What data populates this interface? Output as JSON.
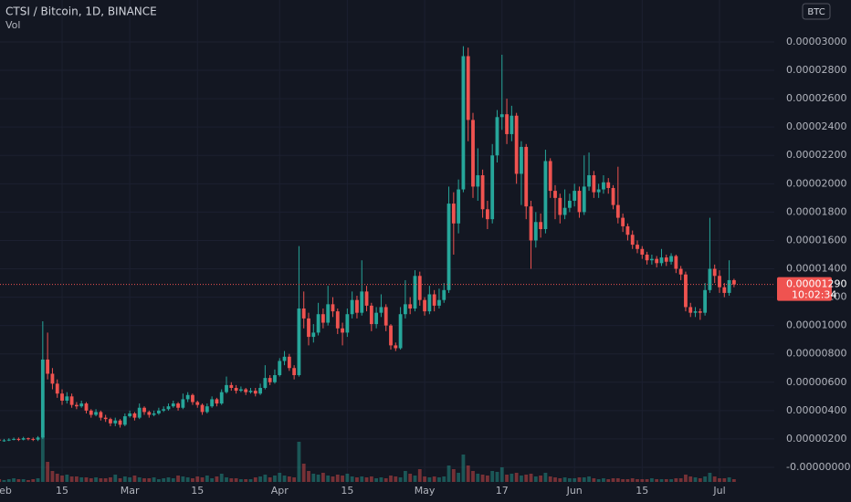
{
  "chart_data": {
    "type": "candlestick",
    "title": "CTSI / Bitcoin, 1D, BINANCE",
    "volume_title": "Vol",
    "currency_button": "BTC",
    "last_price": {
      "value": 1.29e-05,
      "label": "0.00001290"
    },
    "countdown": "10:02:34",
    "up_color": "#26a69a",
    "down_color": "#ef5350",
    "grid": true,
    "ylim": [
      -1.16e-06,
      3.296e-05
    ],
    "yticks": [
      {
        "value": 0,
        "label": "-0.00000000"
      },
      {
        "value": 2e-06,
        "label": "0.00000200"
      },
      {
        "value": 4e-06,
        "label": "0.00000400"
      },
      {
        "value": 6e-06,
        "label": "0.00000600"
      },
      {
        "value": 8e-06,
        "label": "0.00000800"
      },
      {
        "value": 1e-05,
        "label": "0.00001000"
      },
      {
        "value": 1.2e-05,
        "label": "0.00001200"
      },
      {
        "value": 1.4e-05,
        "label": "0.00001400"
      },
      {
        "value": 1.6e-05,
        "label": "0.00001600"
      },
      {
        "value": 1.8e-05,
        "label": "0.00001800"
      },
      {
        "value": 2e-05,
        "label": "0.00002000"
      },
      {
        "value": 2.2e-05,
        "label": "0.00002200"
      },
      {
        "value": 2.4e-05,
        "label": "0.00002400"
      },
      {
        "value": 2.6e-05,
        "label": "0.00002600"
      },
      {
        "value": 2.8e-05,
        "label": "0.00002800"
      },
      {
        "value": 3e-05,
        "label": "0.00003000"
      }
    ],
    "xticks": [
      {
        "value": "Feb 1",
        "label": "eb"
      },
      {
        "value": "Feb 15",
        "label": "15"
      },
      {
        "value": "Mar 1",
        "label": "Mar"
      },
      {
        "value": "Mar 15",
        "label": "15"
      },
      {
        "value": "Apr 1",
        "label": "Apr"
      },
      {
        "value": "Apr 15",
        "label": "15"
      },
      {
        "value": "May 1",
        "label": "May"
      },
      {
        "value": "May 17",
        "label": "17"
      },
      {
        "value": "Jun 1",
        "label": "Jun"
      },
      {
        "value": "Jun 15",
        "label": "15"
      },
      {
        "value": "Jul 1",
        "label": "Jul"
      }
    ],
    "x": [
      "Feb 1",
      "Feb 2",
      "Feb 3",
      "Feb 4",
      "Feb 5",
      "Feb 6",
      "Feb 7",
      "Feb 8",
      "Feb 9",
      "Feb 10",
      "Feb 11",
      "Feb 12",
      "Feb 13",
      "Feb 14",
      "Feb 15",
      "Feb 16",
      "Feb 17",
      "Feb 18",
      "Feb 19",
      "Feb 20",
      "Feb 21",
      "Feb 22",
      "Feb 23",
      "Feb 24",
      "Feb 25",
      "Feb 26",
      "Feb 27",
      "Feb 28",
      "Mar 1",
      "Mar 2",
      "Mar 3",
      "Mar 4",
      "Mar 5",
      "Mar 6",
      "Mar 7",
      "Mar 8",
      "Mar 9",
      "Mar 10",
      "Mar 11",
      "Mar 12",
      "Mar 13",
      "Mar 14",
      "Mar 15",
      "Mar 16",
      "Mar 17",
      "Mar 18",
      "Mar 19",
      "Mar 20",
      "Mar 21",
      "Mar 22",
      "Mar 23",
      "Mar 24",
      "Mar 25",
      "Mar 26",
      "Mar 27",
      "Mar 28",
      "Mar 29",
      "Mar 30",
      "Mar 31",
      "Apr 1",
      "Apr 2",
      "Apr 3",
      "Apr 4",
      "Apr 5",
      "Apr 6",
      "Apr 7",
      "Apr 8",
      "Apr 9",
      "Apr 10",
      "Apr 11",
      "Apr 12",
      "Apr 13",
      "Apr 14",
      "Apr 15",
      "Apr 16",
      "Apr 17",
      "Apr 18",
      "Apr 19",
      "Apr 20",
      "Apr 21",
      "Apr 22",
      "Apr 23",
      "Apr 24",
      "Apr 25",
      "Apr 26",
      "Apr 27",
      "Apr 28",
      "Apr 29",
      "Apr 30",
      "May 1",
      "May 2",
      "May 3",
      "May 4",
      "May 5",
      "May 6",
      "May 7",
      "May 8",
      "May 9",
      "May 10",
      "May 11",
      "May 12",
      "May 13",
      "May 14",
      "May 15",
      "May 16",
      "May 17",
      "May 18",
      "May 19",
      "May 20",
      "May 21",
      "May 22",
      "May 23",
      "May 24",
      "May 25",
      "May 26",
      "May 27",
      "May 28",
      "May 29",
      "May 30",
      "May 31",
      "Jun 1",
      "Jun 2",
      "Jun 3",
      "Jun 4",
      "Jun 5",
      "Jun 6",
      "Jun 7",
      "Jun 8",
      "Jun 9",
      "Jun 10",
      "Jun 11",
      "Jun 12",
      "Jun 13",
      "Jun 14",
      "Jun 15",
      "Jun 16",
      "Jun 17",
      "Jun 18",
      "Jun 19",
      "Jun 20",
      "Jun 21",
      "Jun 22",
      "Jun 23",
      "Jun 24",
      "Jun 25",
      "Jun 26",
      "Jun 27",
      "Jun 28",
      "Jun 29",
      "Jun 30",
      "Jul 1",
      "Jul 2",
      "Jul 3",
      "Jul 4"
    ],
    "ohlc": [
      [
        1.9e-06,
        2e-06,
        1.85e-06,
        1.95e-06
      ],
      [
        1.95e-06,
        2.05e-06,
        1.85e-06,
        1.9e-06
      ],
      [
        1.9e-06,
        2e-06,
        1.8e-06,
        1.9e-06
      ],
      [
        1.9e-06,
        2.05e-06,
        1.85e-06,
        1.95e-06
      ],
      [
        1.95e-06,
        2.1e-06,
        1.9e-06,
        2e-06
      ],
      [
        2e-06,
        2.1e-06,
        1.85e-06,
        1.95e-06
      ],
      [
        1.95e-06,
        2.15e-06,
        1.9e-06,
        2.05e-06
      ],
      [
        2.05e-06,
        2.1e-06,
        1.9e-06,
        2e-06
      ],
      [
        2e-06,
        2.1e-06,
        1.85e-06,
        1.95e-06
      ],
      [
        1.95e-06,
        2.2e-06,
        1.85e-06,
        2.1e-06
      ],
      [
        2.1e-06,
        1.03e-05,
        2e-06,
        7.6e-06
      ],
      [
        7.6e-06,
        9.5e-06,
        6.2e-06,
        6.6e-06
      ],
      [
        6.6e-06,
        7e-06,
        5.5e-06,
        5.9e-06
      ],
      [
        5.9e-06,
        6.2e-06,
        4.9e-06,
        5.2e-06
      ],
      [
        5.2e-06,
        5.5e-06,
        4.4e-06,
        4.7e-06
      ],
      [
        4.7e-06,
        5.3e-06,
        4.5e-06,
        5e-06
      ],
      [
        5e-06,
        5.2e-06,
        4.2e-06,
        4.4e-06
      ],
      [
        4.4e-06,
        4.6e-06,
        4.1e-06,
        4.3e-06
      ],
      [
        4.3e-06,
        4.7e-06,
        4.2e-06,
        4.5e-06
      ],
      [
        4.5e-06,
        4.6e-06,
        3.8e-06,
        4e-06
      ],
      [
        4e-06,
        4.1e-06,
        3.5e-06,
        3.7e-06
      ],
      [
        3.7e-06,
        4.1e-06,
        3.6e-06,
        3.9e-06
      ],
      [
        3.9e-06,
        4e-06,
        3.3e-06,
        3.5e-06
      ],
      [
        3.5e-06,
        3.7e-06,
        3.2e-06,
        3.4e-06
      ],
      [
        3.4e-06,
        3.5e-06,
        2.9e-06,
        3.1e-06
      ],
      [
        3.1e-06,
        3.5e-06,
        2.9e-06,
        3.3e-06
      ],
      [
        3.3e-06,
        3.4e-06,
        2.8e-06,
        3e-06
      ],
      [
        3e-06,
        3.8e-06,
        2.9e-06,
        3.6e-06
      ],
      [
        3.6e-06,
        4e-06,
        3.5e-06,
        3.8e-06
      ],
      [
        3.8e-06,
        3.9e-06,
        3.3e-06,
        3.5e-06
      ],
      [
        3.5e-06,
        4.5e-06,
        3.4e-06,
        4.2e-06
      ],
      [
        4.2e-06,
        4.3e-06,
        3.7e-06,
        3.9e-06
      ],
      [
        3.9e-06,
        4e-06,
        3.5e-06,
        3.7e-06
      ],
      [
        3.7e-06,
        4e-06,
        3.6e-06,
        3.8e-06
      ],
      [
        3.8e-06,
        4.2e-06,
        3.7e-06,
        4e-06
      ],
      [
        4e-06,
        4.3e-06,
        3.9e-06,
        4.1e-06
      ],
      [
        4.1e-06,
        4.5e-06,
        4e-06,
        4.3e-06
      ],
      [
        4.3e-06,
        4.7e-06,
        4.2e-06,
        4.5e-06
      ],
      [
        4.5e-06,
        4.6e-06,
        4e-06,
        4.2e-06
      ],
      [
        4.2e-06,
        5.2e-06,
        4.1e-06,
        4.8e-06
      ],
      [
        4.8e-06,
        5.3e-06,
        4.6e-06,
        5.1e-06
      ],
      [
        5.1e-06,
        5.2e-06,
        4.4e-06,
        4.6e-06
      ],
      [
        4.6e-06,
        4.7e-06,
        4.2e-06,
        4.4e-06
      ],
      [
        4.4e-06,
        4.5e-06,
        3.7e-06,
        3.9e-06
      ],
      [
        3.9e-06,
        4.5e-06,
        3.8e-06,
        4.3e-06
      ],
      [
        4.3e-06,
        5e-06,
        4.2e-06,
        4.8e-06
      ],
      [
        4.8e-06,
        4.9e-06,
        4.3e-06,
        4.5e-06
      ],
      [
        4.5e-06,
        5.5e-06,
        4.4e-06,
        5.3e-06
      ],
      [
        5.3e-06,
        6.4e-06,
        5.2e-06,
        5.8e-06
      ],
      [
        5.8e-06,
        6e-06,
        5.4e-06,
        5.6e-06
      ],
      [
        5.6e-06,
        5.8e-06,
        5.2e-06,
        5.4e-06
      ],
      [
        5.4e-06,
        5.7e-06,
        5.3e-06,
        5.5e-06
      ],
      [
        5.5e-06,
        5.6e-06,
        5.1e-06,
        5.3e-06
      ],
      [
        5.3e-06,
        5.6e-06,
        5.2e-06,
        5.4e-06
      ],
      [
        5.4e-06,
        5.6e-06,
        5e-06,
        5.2e-06
      ],
      [
        5.2e-06,
        5.9e-06,
        5.1e-06,
        5.6e-06
      ],
      [
        5.6e-06,
        7.2e-06,
        5.5e-06,
        6.3e-06
      ],
      [
        6.3e-06,
        6.5e-06,
        5.8e-06,
        6e-06
      ],
      [
        6e-06,
        6.9e-06,
        5.9e-06,
        6.5e-06
      ],
      [
        6.5e-06,
        7.7e-06,
        6.4e-06,
        7.5e-06
      ],
      [
        7.5e-06,
        8.2e-06,
        7.2e-06,
        7.8e-06
      ],
      [
        7.8e-06,
        8e-06,
        6.8e-06,
        7e-06
      ],
      [
        7e-06,
        7.2e-06,
        6.2e-06,
        6.5e-06
      ],
      [
        6.5e-06,
        1.56e-05,
        6.4e-06,
        1.12e-05
      ],
      [
        1.12e-05,
        1.24e-05,
        9.8e-06,
        1.05e-05
      ],
      [
        1.05e-05,
        1.09e-05,
        8.6e-06,
        9.2e-06
      ],
      [
        9.2e-06,
        1.01e-05,
        8.8e-06,
        9.5e-06
      ],
      [
        9.5e-06,
        1.16e-05,
        9.3e-06,
        1.08e-05
      ],
      [
        1.08e-05,
        1.12e-05,
        9.8e-06,
        1.02e-05
      ],
      [
        1.02e-05,
        1.28e-05,
        1e-05,
        1.15e-05
      ],
      [
        1.15e-05,
        1.2e-05,
        1.06e-05,
        1.1e-05
      ],
      [
        1.1e-05,
        1.12e-05,
        9.4e-06,
        9.8e-06
      ],
      [
        9.8e-06,
        1.02e-05,
        8.6e-06,
        9.5e-06
      ],
      [
        9.5e-06,
        1.12e-05,
        9.2e-06,
        1.08e-05
      ],
      [
        1.08e-05,
        1.24e-05,
        1.05e-05,
        1.18e-05
      ],
      [
        1.18e-05,
        1.21e-05,
        1.05e-05,
        1.09e-05
      ],
      [
        1.09e-05,
        1.46e-05,
        1.07e-05,
        1.24e-05
      ],
      [
        1.24e-05,
        1.28e-05,
        1.1e-05,
        1.14e-05
      ],
      [
        1.14e-05,
        1.16e-05,
        9.6e-06,
        1.01e-05
      ],
      [
        1.01e-05,
        1.13e-05,
        9.8e-06,
        1.09e-05
      ],
      [
        1.09e-05,
        1.22e-05,
        1.06e-05,
        1.13e-05
      ],
      [
        1.13e-05,
        1.15e-05,
        9.6e-06,
        1e-05
      ],
      [
        1e-05,
        1.01e-05,
        8.3e-06,
        8.6e-06
      ],
      [
        8.6e-06,
        8.8e-06,
        8.2e-06,
        8.4e-06
      ],
      [
        8.4e-06,
        1.13e-05,
        8.3e-06,
        1.08e-05
      ],
      [
        1.08e-05,
        1.32e-05,
        1.05e-05,
        1.15e-05
      ],
      [
        1.15e-05,
        1.2e-05,
        1.08e-05,
        1.12e-05
      ],
      [
        1.12e-05,
        1.39e-05,
        1.1e-05,
        1.35e-05
      ],
      [
        1.35e-05,
        1.38e-05,
        1.14e-05,
        1.18e-05
      ],
      [
        1.18e-05,
        1.2e-05,
        1.07e-05,
        1.1e-05
      ],
      [
        1.1e-05,
        1.28e-05,
        1.08e-05,
        1.22e-05
      ],
      [
        1.22e-05,
        1.25e-05,
        1.1e-05,
        1.14e-05
      ],
      [
        1.14e-05,
        1.26e-05,
        1.12e-05,
        1.18e-05
      ],
      [
        1.18e-05,
        1.3e-05,
        1.16e-05,
        1.25e-05
      ],
      [
        1.25e-05,
        1.98e-05,
        1.23e-05,
        1.86e-05
      ],
      [
        1.86e-05,
        1.94e-05,
        1.5e-05,
        1.72e-05
      ],
      [
        1.72e-05,
        2.03e-05,
        1.65e-05,
        1.96e-05
      ],
      [
        1.96e-05,
        2.97e-05,
        1.94e-05,
        2.9e-05
      ],
      [
        2.9e-05,
        2.96e-05,
        2.3e-05,
        2.45e-05
      ],
      [
        2.45e-05,
        2.5e-05,
        1.9e-05,
        1.98e-05
      ],
      [
        1.98e-05,
        2.25e-05,
        1.88e-05,
        2.06e-05
      ],
      [
        2.06e-05,
        2.1e-05,
        1.76e-05,
        1.82e-05
      ],
      [
        1.82e-05,
        1.88e-05,
        1.68e-05,
        1.75e-05
      ],
      [
        1.75e-05,
        2.28e-05,
        1.72e-05,
        2.2e-05
      ],
      [
        2.2e-05,
        2.52e-05,
        2.15e-05,
        2.47e-05
      ],
      [
        2.47e-05,
        2.91e-05,
        2.38e-05,
        2.49e-05
      ],
      [
        2.49e-05,
        2.6e-05,
        2.28e-05,
        2.35e-05
      ],
      [
        2.35e-05,
        2.55e-05,
        2.3e-05,
        2.48e-05
      ],
      [
        2.48e-05,
        2.5e-05,
        2e-05,
        2.07e-05
      ],
      [
        2.07e-05,
        2.3e-05,
        1.85e-05,
        2.26e-05
      ],
      [
        2.26e-05,
        2.28e-05,
        1.75e-05,
        1.84e-05
      ],
      [
        1.84e-05,
        1.88e-05,
        1.4e-05,
        1.6e-05
      ],
      [
        1.6e-05,
        1.8e-05,
        1.55e-05,
        1.73e-05
      ],
      [
        1.73e-05,
        1.79e-05,
        1.62e-05,
        1.68e-05
      ],
      [
        1.68e-05,
        2.24e-05,
        1.65e-05,
        2.16e-05
      ],
      [
        2.16e-05,
        2.18e-05,
        1.9e-05,
        1.95e-05
      ],
      [
        1.95e-05,
        1.99e-05,
        1.75e-05,
        1.9e-05
      ],
      [
        1.9e-05,
        1.93e-05,
        1.72e-05,
        1.78e-05
      ],
      [
        1.78e-05,
        1.96e-05,
        1.75e-05,
        1.83e-05
      ],
      [
        1.83e-05,
        1.93e-05,
        1.8e-05,
        1.88e-05
      ],
      [
        1.88e-05,
        2e-05,
        1.84e-05,
        1.95e-05
      ],
      [
        1.95e-05,
        1.98e-05,
        1.76e-05,
        1.8e-05
      ],
      [
        1.8e-05,
        2.2e-05,
        1.78e-05,
        1.98e-05
      ],
      [
        1.98e-05,
        2.22e-05,
        1.95e-05,
        2.06e-05
      ],
      [
        2.06e-05,
        2.09e-05,
        1.9e-05,
        1.94e-05
      ],
      [
        1.94e-05,
        2e-05,
        1.9e-05,
        1.96e-05
      ],
      [
        1.96e-05,
        2.06e-05,
        1.93e-05,
        2.01e-05
      ],
      [
        2.01e-05,
        2.04e-05,
        1.93e-05,
        1.97e-05
      ],
      [
        1.97e-05,
        1.99e-05,
        1.82e-05,
        1.85e-05
      ],
      [
        1.85e-05,
        2.12e-05,
        1.72e-05,
        1.76e-05
      ],
      [
        1.76e-05,
        1.79e-05,
        1.66e-05,
        1.7e-05
      ],
      [
        1.7e-05,
        1.72e-05,
        1.6e-05,
        1.64e-05
      ],
      [
        1.64e-05,
        1.67e-05,
        1.54e-05,
        1.57e-05
      ],
      [
        1.57e-05,
        1.6e-05,
        1.51e-05,
        1.54e-05
      ],
      [
        1.54e-05,
        1.56e-05,
        1.47e-05,
        1.5e-05
      ],
      [
        1.5e-05,
        1.52e-05,
        1.43e-05,
        1.46e-05
      ],
      [
        1.46e-05,
        1.5e-05,
        1.43e-05,
        1.47e-05
      ],
      [
        1.47e-05,
        1.49e-05,
        1.41e-05,
        1.44e-05
      ],
      [
        1.44e-05,
        1.54e-05,
        1.42e-05,
        1.48e-05
      ],
      [
        1.48e-05,
        1.5e-05,
        1.42e-05,
        1.45e-05
      ],
      [
        1.45e-05,
        1.51e-05,
        1.43e-05,
        1.49e-05
      ],
      [
        1.49e-05,
        1.5e-05,
        1.37e-05,
        1.4e-05
      ],
      [
        1.4e-05,
        1.42e-05,
        1.32e-05,
        1.36e-05
      ],
      [
        1.36e-05,
        1.38e-05,
        1.1e-05,
        1.13e-05
      ],
      [
        1.13e-05,
        1.16e-05,
        1.06e-05,
        1.09e-05
      ],
      [
        1.09e-05,
        1.13e-05,
        1.06e-05,
        1.1e-05
      ],
      [
        1.1e-05,
        1.12e-05,
        1.04e-05,
        1.09e-05
      ],
      [
        1.09e-05,
        1.3e-05,
        1.07e-05,
        1.25e-05
      ],
      [
        1.25e-05,
        1.76e-05,
        1.23e-05,
        1.4e-05
      ],
      [
        1.4e-05,
        1.43e-05,
        1.3e-05,
        1.35e-05
      ],
      [
        1.35e-05,
        1.39e-05,
        1.23e-05,
        1.27e-05
      ],
      [
        1.27e-05,
        1.3e-05,
        1.2e-05,
        1.23e-05
      ],
      [
        1.23e-05,
        1.46e-05,
        1.21e-05,
        1.32e-05
      ],
      [
        1.32e-05,
        1.33e-05,
        1.27e-05,
        1.29e-05
      ]
    ],
    "volume": [
      3,
      3,
      2,
      3,
      4,
      3,
      3,
      2,
      3,
      4,
      50,
      22,
      12,
      9,
      7,
      8,
      6,
      6,
      5,
      5,
      4,
      5,
      4,
      4,
      5,
      8,
      4,
      6,
      5,
      7,
      5,
      4,
      4,
      5,
      3,
      4,
      5,
      4,
      7,
      6,
      5,
      4,
      6,
      5,
      7,
      4,
      6,
      9,
      5,
      4,
      4,
      3,
      3,
      3,
      5,
      6,
      8,
      5,
      7,
      10,
      7,
      6,
      5,
      44,
      20,
      12,
      9,
      8,
      10,
      7,
      6,
      8,
      7,
      9,
      6,
      5,
      6,
      5,
      6,
      4,
      5,
      4,
      7,
      6,
      5,
      12,
      9,
      7,
      14,
      6,
      5,
      6,
      5,
      6,
      18,
      14,
      10,
      30,
      18,
      12,
      9,
      8,
      7,
      12,
      11,
      16,
      8,
      9,
      10,
      7,
      8,
      9,
      6,
      7,
      10,
      6,
      5,
      4,
      5,
      4,
      4,
      5,
      5,
      6,
      4,
      3,
      4,
      3,
      4,
      4,
      3,
      3,
      4,
      3,
      3,
      3,
      4,
      3,
      3,
      3,
      3,
      4,
      4,
      8,
      6,
      5,
      4,
      6,
      10,
      6,
      4,
      4,
      5,
      3
    ]
  }
}
